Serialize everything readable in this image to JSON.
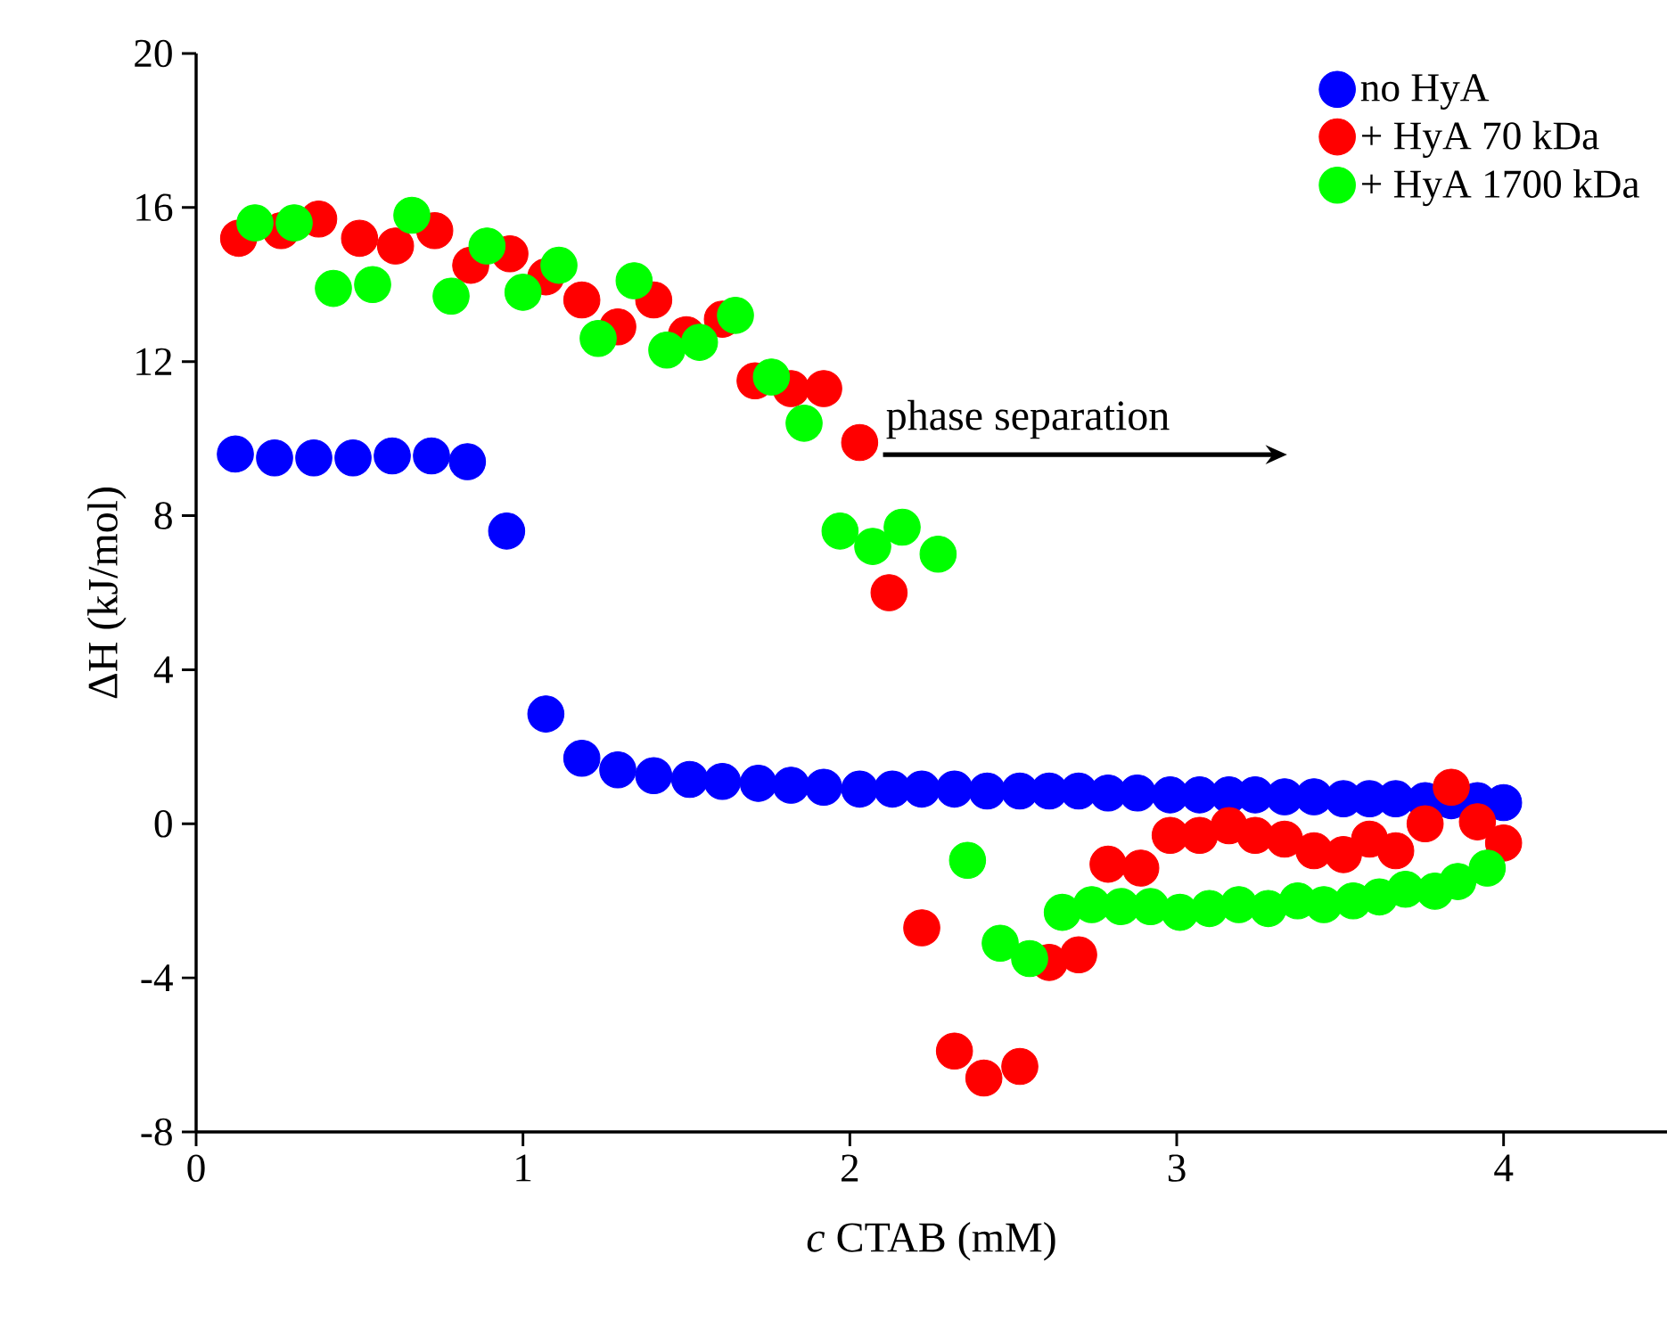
{
  "chart_data": {
    "type": "scatter",
    "xlabel": "*c* CTAB (mM)",
    "ylabel": "ΔH (kJ/mol)",
    "xlim": [
      0,
      4.5
    ],
    "xticks": [
      0,
      1,
      2,
      3,
      4
    ],
    "ylim": [
      -8,
      20
    ],
    "yticks": [
      -8,
      -4,
      0,
      4,
      8,
      12,
      16,
      20
    ],
    "legend": "top right",
    "marker": "circle",
    "grid": false,
    "annotations": [
      "phase separation"
    ],
    "series": [
      {
        "name": "no HyA",
        "color": "#0000ff",
        "x": [
          0.12,
          0.24,
          0.36,
          0.48,
          0.6,
          0.72,
          0.83,
          0.95,
          1.07,
          1.18,
          1.29,
          1.4,
          1.51,
          1.61,
          1.72,
          1.82,
          1.92,
          2.03,
          2.13,
          2.22,
          2.32,
          2.42,
          2.52,
          2.61,
          2.7,
          2.79,
          2.88,
          2.98,
          3.07,
          3.16,
          3.24,
          3.33,
          3.42,
          3.51,
          3.59,
          3.67,
          3.76,
          3.84,
          3.92,
          4.0
        ],
        "values": [
          9.6,
          9.5,
          9.5,
          9.5,
          9.55,
          9.55,
          9.4,
          7.6,
          2.85,
          1.7,
          1.4,
          1.25,
          1.15,
          1.1,
          1.05,
          1.0,
          0.95,
          0.9,
          0.9,
          0.9,
          0.9,
          0.85,
          0.85,
          0.85,
          0.85,
          0.8,
          0.8,
          0.75,
          0.75,
          0.75,
          0.75,
          0.7,
          0.7,
          0.65,
          0.65,
          0.65,
          0.6,
          0.6,
          0.6,
          0.55
        ]
      },
      {
        "name": "+ HyA 70 kDa",
        "color": "#ff0000",
        "x": [
          0.13,
          0.26,
          0.375,
          0.5,
          0.61,
          0.73,
          0.84,
          0.96,
          1.07,
          1.18,
          1.29,
          1.4,
          1.5,
          1.61,
          1.71,
          1.82,
          1.92,
          2.03,
          2.12,
          2.22,
          2.32,
          2.41,
          2.52,
          2.61,
          2.7,
          2.79,
          2.89,
          2.98,
          3.07,
          3.16,
          3.24,
          3.33,
          3.42,
          3.51,
          3.59,
          3.67,
          3.76,
          3.84,
          3.92,
          4.0
        ],
        "values": [
          15.2,
          15.4,
          15.7,
          15.2,
          15.0,
          15.4,
          14.5,
          14.8,
          14.2,
          13.6,
          12.9,
          13.6,
          12.7,
          13.1,
          11.5,
          11.3,
          11.3,
          9.9,
          6.0,
          -2.7,
          -5.9,
          -6.6,
          -6.3,
          -3.6,
          -3.4,
          -1.05,
          -1.15,
          -0.3,
          -0.3,
          -0.05,
          -0.3,
          -0.4,
          -0.7,
          -0.8,
          -0.4,
          -0.7,
          0.0,
          0.95,
          0.05,
          -0.5
        ]
      },
      {
        "name": "+ HyA 1700 kDa",
        "color": "#00ff00",
        "x": [
          0.18,
          0.3,
          0.42,
          0.54,
          0.66,
          0.78,
          0.89,
          1.0,
          1.11,
          1.23,
          1.34,
          1.44,
          1.54,
          1.65,
          1.76,
          1.86,
          1.97,
          2.07,
          2.16,
          2.27,
          2.36,
          2.46,
          2.55,
          2.65,
          2.74,
          2.83,
          2.92,
          3.01,
          3.1,
          3.19,
          3.28,
          3.37,
          3.45,
          3.54,
          3.62,
          3.7,
          3.79,
          3.86,
          3.95
        ],
        "values": [
          15.6,
          15.6,
          13.9,
          14.0,
          15.8,
          13.7,
          15.0,
          13.8,
          14.5,
          12.6,
          14.1,
          12.3,
          12.5,
          13.2,
          11.6,
          10.4,
          7.6,
          7.2,
          7.7,
          7.0,
          -0.95,
          -3.1,
          -3.5,
          -2.3,
          -2.1,
          -2.15,
          -2.15,
          -2.3,
          -2.2,
          -2.1,
          -2.2,
          -2.0,
          -2.1,
          -2.0,
          -1.9,
          -1.7,
          -1.75,
          -1.5,
          -1.15
        ]
      }
    ]
  }
}
